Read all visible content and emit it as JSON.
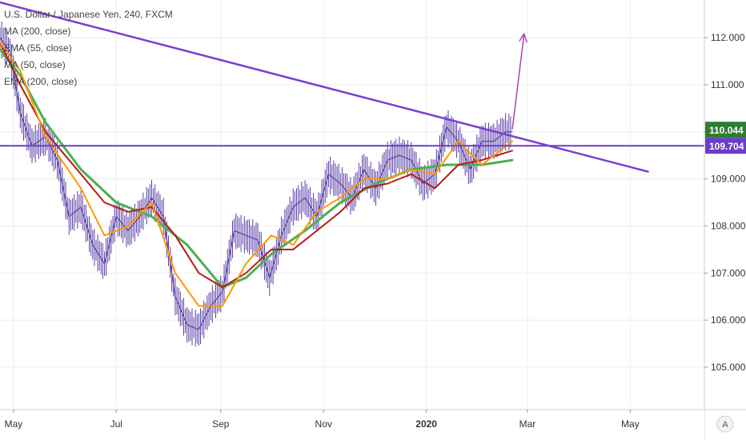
{
  "legend": {
    "symbol": "U.S. Dollar / Japanese Yen, 240, FXCM",
    "studies": [
      "MA (200, close)",
      "EMA (55, close)",
      "MA (50, close)",
      "EMA (200, close)"
    ]
  },
  "colors": {
    "background": "#ffffff",
    "grid": "#ededed",
    "trendline": "#7b3fd0",
    "horizontal_level": "#6a3fc8",
    "projection_arrow": "#b03fb8",
    "price_bars": "#5a3fa6",
    "ma_200": "#4caf50",
    "ema_55": "#ff9800",
    "ma_50": "#b71c1c",
    "label_price": "#2e7d32",
    "label_level": "#6a3fc8",
    "axis_text": "#333333"
  },
  "scale_button": "A",
  "chart_data": {
    "type": "line",
    "title": "U.S. Dollar / Japanese Yen, 240, FXCM",
    "x_ticks": [
      "May",
      "Jul",
      "Sep",
      "Nov",
      "2020",
      "Mar",
      "May"
    ],
    "x_tick_dates": [
      "2019-05-01",
      "2019-07-01",
      "2019-09-01",
      "2019-11-01",
      "2020-01-01",
      "2020-03-01",
      "2020-05-01"
    ],
    "y_ticks": [
      "105.000",
      "106.000",
      "107.000",
      "108.000",
      "109.000",
      "110.000",
      "111.000",
      "112.000"
    ],
    "ylim": [
      104.1,
      112.8
    ],
    "xlim": [
      "2019-04-23",
      "2020-06-14"
    ],
    "grid": true,
    "price_labels": [
      {
        "text": "110.044",
        "value": 110.044,
        "role": "last price"
      },
      {
        "text": "109.704",
        "value": 109.704,
        "role": "horizontal level"
      }
    ],
    "series": [
      {
        "name": "U.S. Dollar / Japanese Yen",
        "x": [
          "2019-04-23",
          "2019-04-29",
          "2019-05-05",
          "2019-05-12",
          "2019-05-20",
          "2019-05-27",
          "2019-06-03",
          "2019-06-10",
          "2019-06-17",
          "2019-06-24",
          "2019-07-01",
          "2019-07-08",
          "2019-07-15",
          "2019-07-22",
          "2019-07-29",
          "2019-08-05",
          "2019-08-12",
          "2019-08-19",
          "2019-08-26",
          "2019-09-02",
          "2019-09-09",
          "2019-09-16",
          "2019-09-23",
          "2019-09-30",
          "2019-10-07",
          "2019-10-14",
          "2019-10-21",
          "2019-10-28",
          "2019-11-04",
          "2019-11-11",
          "2019-11-18",
          "2019-11-25",
          "2019-12-02",
          "2019-12-09",
          "2019-12-16",
          "2019-12-23",
          "2019-12-30",
          "2020-01-06",
          "2020-01-13",
          "2020-01-20",
          "2020-01-27",
          "2020-02-03",
          "2020-02-10",
          "2020-02-17",
          "2020-02-21"
        ],
        "values": [
          112.0,
          111.7,
          110.4,
          109.7,
          109.9,
          109.4,
          108.2,
          108.4,
          107.6,
          107.2,
          108.2,
          107.9,
          108.2,
          108.6,
          108.2,
          106.5,
          105.9,
          105.8,
          106.3,
          106.6,
          107.9,
          107.8,
          107.7,
          106.9,
          107.8,
          108.4,
          108.6,
          108.2,
          109.1,
          108.9,
          108.6,
          109.2,
          108.8,
          109.4,
          109.5,
          109.4,
          108.9,
          109.1,
          110.1,
          109.8,
          109.2,
          109.8,
          109.8,
          110.0,
          110.0
        ]
      },
      {
        "name": "MA (200, close)",
        "x": [
          "2019-04-23",
          "2019-05-05",
          "2019-05-20",
          "2019-06-10",
          "2019-07-01",
          "2019-07-22",
          "2019-08-12",
          "2019-09-02",
          "2019-09-16",
          "2019-10-01",
          "2019-10-21",
          "2019-11-11",
          "2019-12-02",
          "2019-12-23",
          "2020-01-13",
          "2020-02-03",
          "2020-02-21"
        ],
        "values": [
          111.75,
          111.2,
          110.2,
          109.2,
          108.5,
          108.2,
          107.6,
          106.7,
          106.9,
          107.4,
          107.9,
          108.5,
          108.9,
          109.2,
          109.3,
          109.3,
          109.4
        ]
      },
      {
        "name": "EMA (55, close)",
        "x": [
          "2019-04-23",
          "2019-05-05",
          "2019-05-20",
          "2019-06-10",
          "2019-06-24",
          "2019-07-08",
          "2019-07-22",
          "2019-08-05",
          "2019-08-19",
          "2019-09-02",
          "2019-09-16",
          "2019-10-01",
          "2019-10-14",
          "2019-10-28",
          "2019-11-11",
          "2019-11-25",
          "2019-12-09",
          "2019-12-23",
          "2020-01-06",
          "2020-01-20",
          "2020-02-03",
          "2020-02-21"
        ],
        "values": [
          111.9,
          111.3,
          109.9,
          108.8,
          107.8,
          108.0,
          108.5,
          107.0,
          106.3,
          106.3,
          107.2,
          107.8,
          107.6,
          108.3,
          108.6,
          109.0,
          109.0,
          109.2,
          109.1,
          109.8,
          109.3,
          109.8
        ]
      },
      {
        "name": "MA (50, close)",
        "x": [
          "2019-04-23",
          "2019-05-05",
          "2019-05-20",
          "2019-06-10",
          "2019-06-24",
          "2019-07-08",
          "2019-07-22",
          "2019-08-05",
          "2019-08-19",
          "2019-09-02",
          "2019-09-16",
          "2019-10-01",
          "2019-10-14",
          "2019-10-28",
          "2019-11-11",
          "2019-11-25",
          "2019-12-09",
          "2019-12-23",
          "2020-01-06",
          "2020-01-20",
          "2020-02-03",
          "2020-02-21"
        ],
        "values": [
          111.9,
          111.0,
          110.0,
          109.1,
          108.5,
          108.3,
          108.4,
          107.8,
          107.0,
          106.7,
          107.0,
          107.5,
          107.5,
          107.9,
          108.3,
          108.8,
          108.9,
          109.1,
          108.8,
          109.3,
          109.4,
          109.6
        ]
      }
    ],
    "trendline": {
      "x": [
        "2019-04-23",
        "2020-05-12"
      ],
      "values": [
        112.75,
        109.15
      ]
    },
    "horizontal_line": {
      "value": 109.704
    },
    "projection_arrow": {
      "x": [
        "2020-02-21",
        "2020-02-28"
      ],
      "values": [
        110.05,
        112.08
      ]
    }
  }
}
